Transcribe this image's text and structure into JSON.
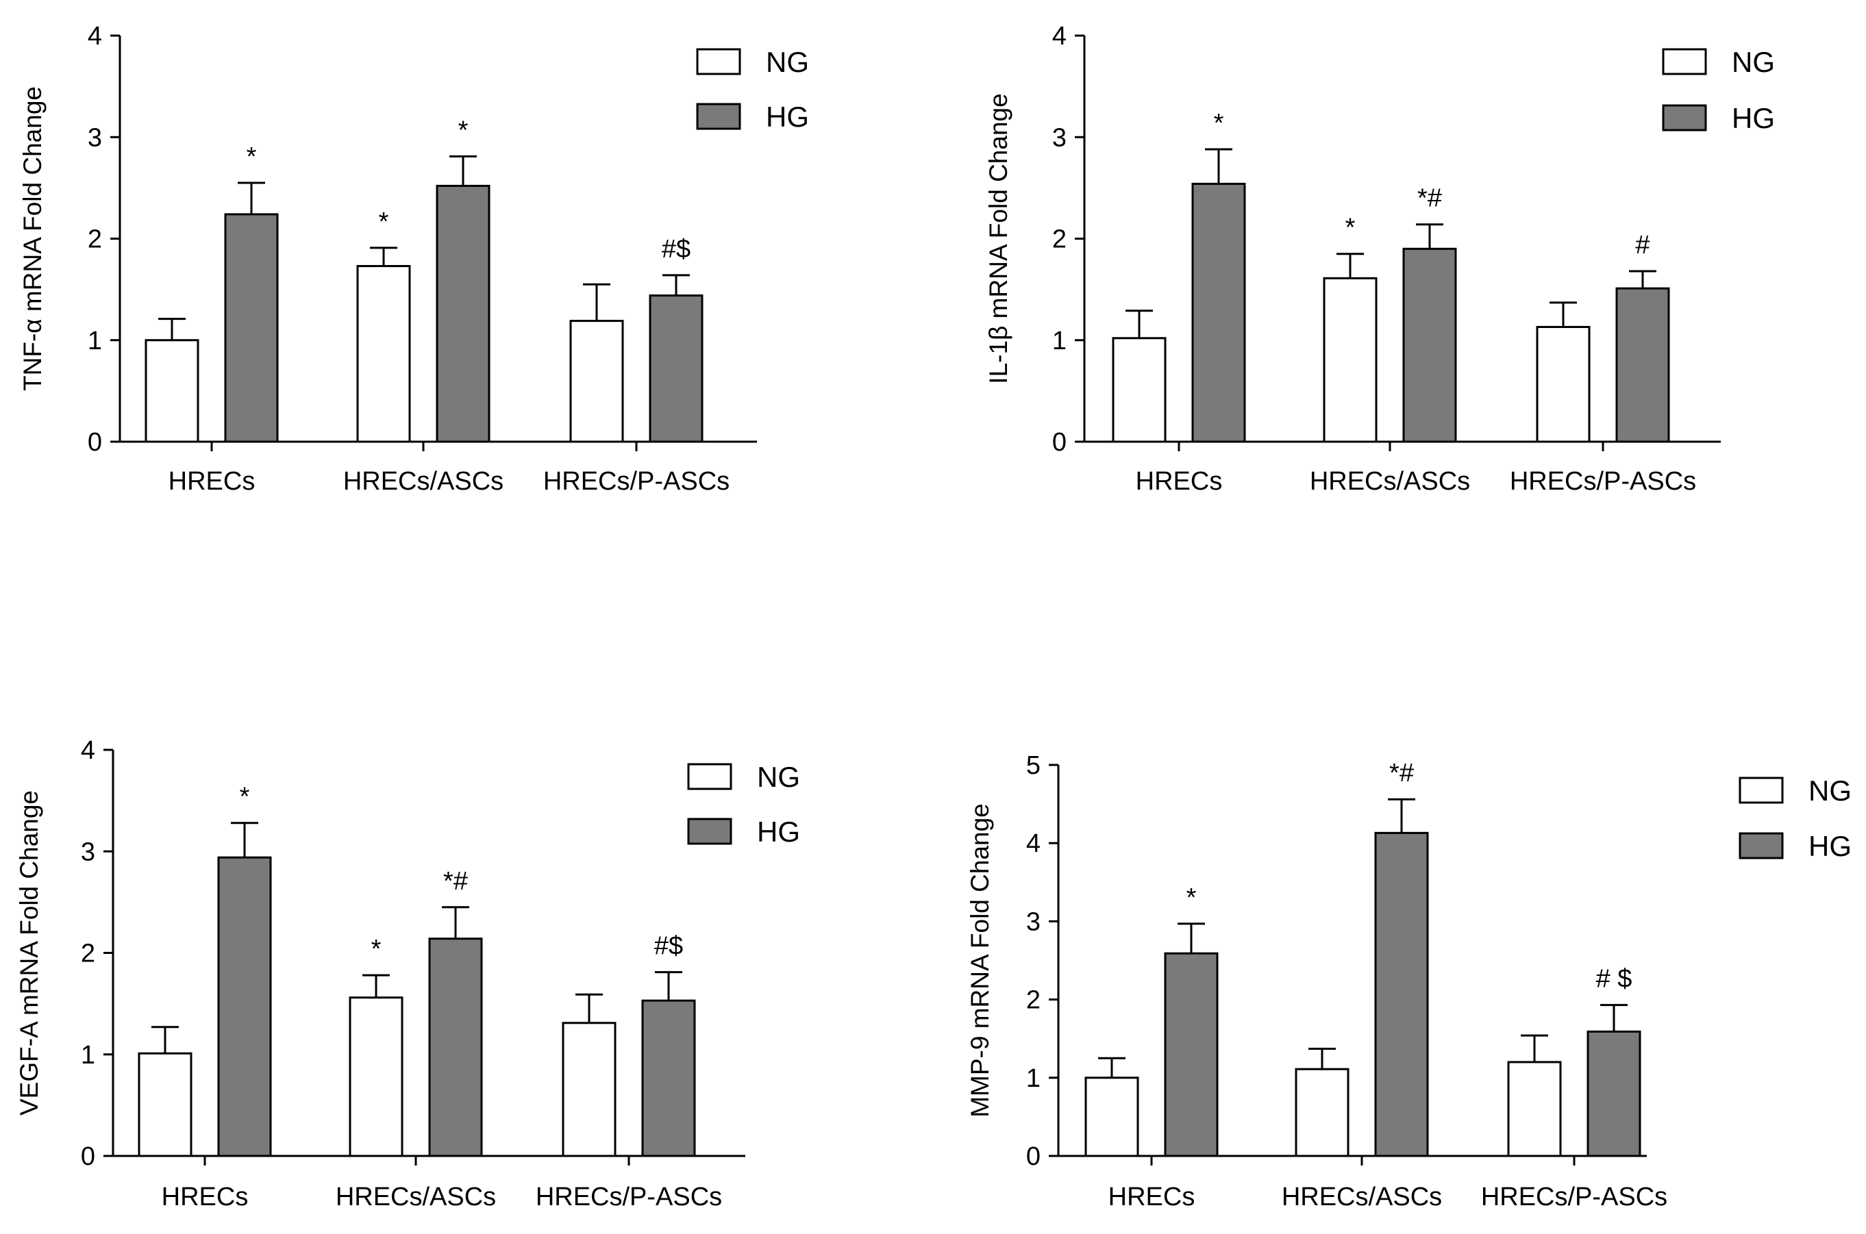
{
  "colors": {
    "ng": "#ffffff",
    "hg": "#7a7a7a",
    "stroke": "#000000"
  },
  "chart_data": [
    {
      "type": "bar",
      "ylabel": "TNF-α mRNA Fold Change",
      "categories": [
        "HRECs",
        "HRECs/ASCs",
        "HRECs/P-ASCs"
      ],
      "ylim": [
        0,
        4
      ],
      "yticks": [
        "0",
        "1",
        "2",
        "3",
        "4"
      ],
      "legend": [
        "NG",
        "HG"
      ],
      "series": [
        {
          "name": "NG",
          "values": [
            1.0,
            1.73,
            1.19
          ],
          "errors": [
            0.21,
            0.18,
            0.36
          ],
          "annotations": [
            "",
            "*",
            ""
          ]
        },
        {
          "name": "HG",
          "values": [
            2.24,
            2.52,
            1.44
          ],
          "errors": [
            0.31,
            0.29,
            0.2
          ],
          "annotations": [
            "*",
            "*",
            "#$"
          ]
        }
      ]
    },
    {
      "type": "bar",
      "ylabel": "IL-1β mRNA Fold Change",
      "categories": [
        "HRECs",
        "HRECs/ASCs",
        "HRECs/P-ASCs"
      ],
      "ylim": [
        0,
        4
      ],
      "yticks": [
        "0",
        "1",
        "2",
        "3",
        "4"
      ],
      "legend": [
        "NG",
        "HG"
      ],
      "series": [
        {
          "name": "NG",
          "values": [
            1.02,
            1.61,
            1.13
          ],
          "errors": [
            0.27,
            0.24,
            0.24
          ],
          "annotations": [
            "",
            "*",
            ""
          ]
        },
        {
          "name": "HG",
          "values": [
            2.54,
            1.9,
            1.51
          ],
          "errors": [
            0.34,
            0.24,
            0.17
          ],
          "annotations": [
            "*",
            "*#",
            "#"
          ]
        }
      ]
    },
    {
      "type": "bar",
      "ylabel": "VEGF-A mRNA Fold Change",
      "categories": [
        "HRECs",
        "HRECs/ASCs",
        "HRECs/P-ASCs"
      ],
      "ylim": [
        0,
        4
      ],
      "yticks": [
        "0",
        "1",
        "2",
        "3",
        "4"
      ],
      "legend": [
        "NG",
        "HG"
      ],
      "series": [
        {
          "name": "NG",
          "values": [
            1.01,
            1.56,
            1.31
          ],
          "errors": [
            0.26,
            0.22,
            0.28
          ],
          "annotations": [
            "",
            "*",
            ""
          ]
        },
        {
          "name": "HG",
          "values": [
            2.94,
            2.14,
            1.53
          ],
          "errors": [
            0.34,
            0.31,
            0.28
          ],
          "annotations": [
            "*",
            "*#",
            "#$"
          ]
        }
      ]
    },
    {
      "type": "bar",
      "ylabel": "MMP-9 mRNA Fold Change",
      "categories": [
        "HRECs",
        "HRECs/ASCs",
        "HRECs/P-ASCs"
      ],
      "ylim": [
        0,
        5
      ],
      "yticks": [
        "0",
        "1",
        "2",
        "3",
        "4",
        "5"
      ],
      "legend": [
        "NG",
        "HG"
      ],
      "series": [
        {
          "name": "NG",
          "values": [
            1.0,
            1.11,
            1.2
          ],
          "errors": [
            0.25,
            0.26,
            0.34
          ],
          "annotations": [
            "",
            "",
            ""
          ]
        },
        {
          "name": "HG",
          "values": [
            2.59,
            4.13,
            1.59
          ],
          "errors": [
            0.38,
            0.43,
            0.34
          ],
          "annotations": [
            "*",
            "*#",
            "# $"
          ]
        }
      ]
    }
  ]
}
